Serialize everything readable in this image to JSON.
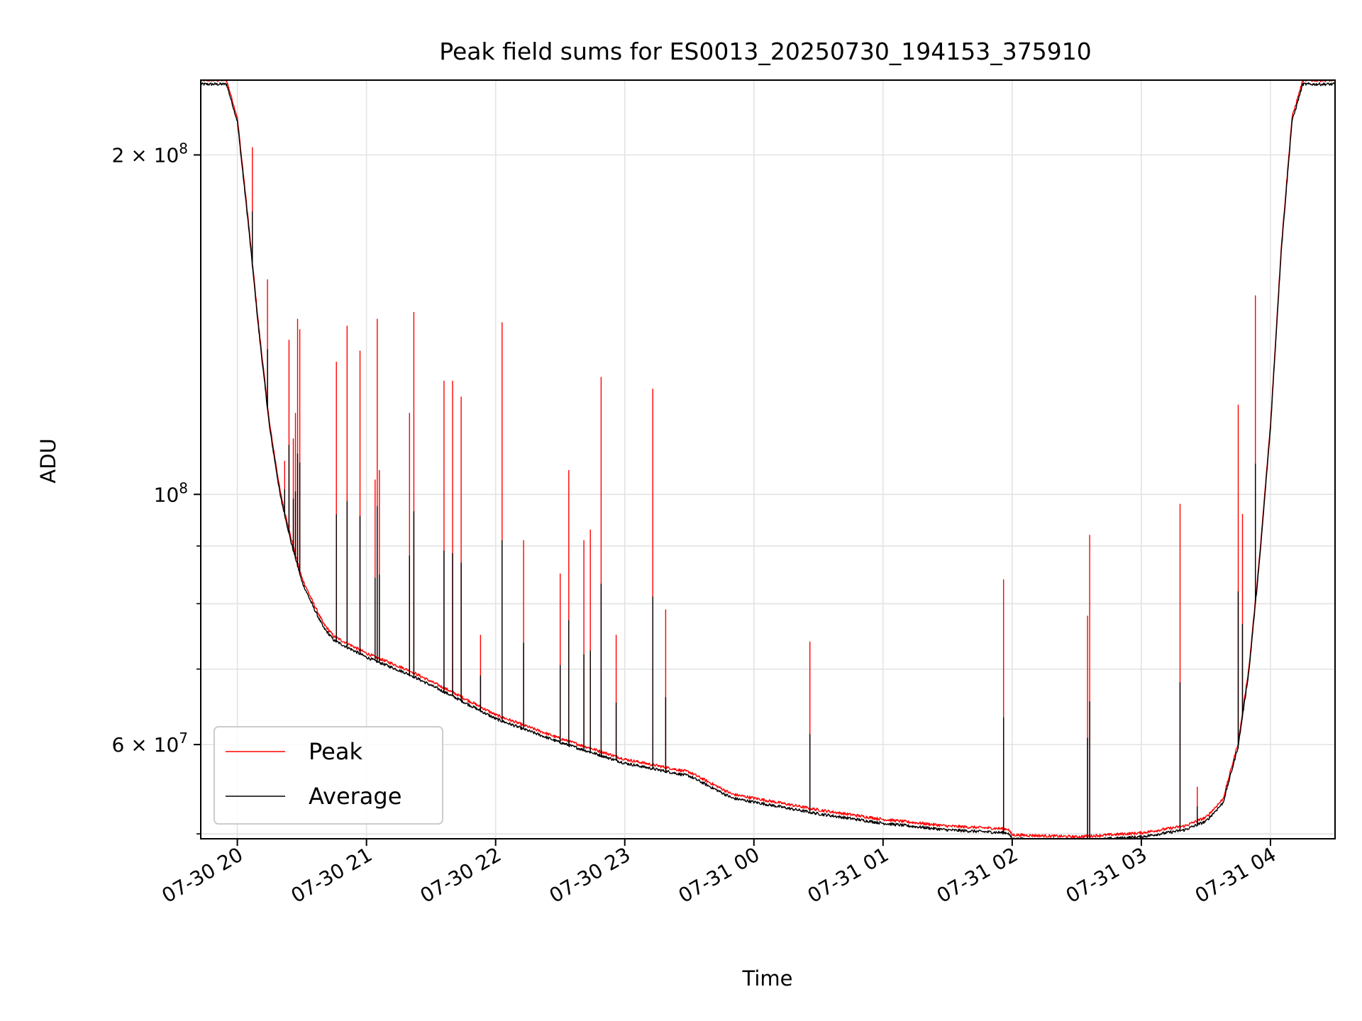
{
  "chart_data": {
    "type": "line",
    "title": "Peak field sums for ES0013_20250730_194153_375910",
    "xlabel": "Time",
    "ylabel": "ADU",
    "y_scale": "log",
    "x_range": [
      "2025-07-30 19:43",
      "2025-07-31 04:30"
    ],
    "ylim": [
      49500000,
      233000000
    ],
    "x_ticks": [
      {
        "t": "2025-07-30 20:00",
        "label": "07-30 20"
      },
      {
        "t": "2025-07-30 21:00",
        "label": "07-30 21"
      },
      {
        "t": "2025-07-30 22:00",
        "label": "07-30 22"
      },
      {
        "t": "2025-07-30 23:00",
        "label": "07-30 23"
      },
      {
        "t": "2025-07-31 00:00",
        "label": "07-31 00"
      },
      {
        "t": "2025-07-31 01:00",
        "label": "07-31 01"
      },
      {
        "t": "2025-07-31 02:00",
        "label": "07-31 02"
      },
      {
        "t": "2025-07-31 03:00",
        "label": "07-31 03"
      },
      {
        "t": "2025-07-31 04:00",
        "label": "07-31 04"
      }
    ],
    "y_major_ticks": [
      {
        "value": 200000000,
        "mant": "2 × 10",
        "exp": "8"
      },
      {
        "value": 100000000,
        "mant": "10",
        "exp": "8"
      },
      {
        "value": 60000000,
        "mant": "6 × 10",
        "exp": "7"
      }
    ],
    "y_minor_ticks": [
      50000000,
      70000000,
      80000000,
      90000000
    ],
    "grid": true,
    "legend_position": "lower-left",
    "series": [
      {
        "name": "Peak",
        "color": "#ff0000"
      },
      {
        "name": "Average",
        "color": "#000000"
      }
    ],
    "baseline": [
      {
        "t": "2025-07-30 19:43",
        "v": 232000000
      },
      {
        "t": "2025-07-30 19:55",
        "v": 232000000
      },
      {
        "t": "2025-07-30 20:00",
        "v": 215000000
      },
      {
        "t": "2025-07-30 20:05",
        "v": 175000000
      },
      {
        "t": "2025-07-30 20:10",
        "v": 140000000
      },
      {
        "t": "2025-07-30 20:15",
        "v": 115000000
      },
      {
        "t": "2025-07-30 20:20",
        "v": 100000000
      },
      {
        "t": "2025-07-30 20:25",
        "v": 91000000
      },
      {
        "t": "2025-07-30 20:30",
        "v": 84000000
      },
      {
        "t": "2025-07-30 20:35",
        "v": 80000000
      },
      {
        "t": "2025-07-30 20:40",
        "v": 76500000
      },
      {
        "t": "2025-07-30 20:45",
        "v": 74500000
      },
      {
        "t": "2025-07-30 21:00",
        "v": 72000000
      },
      {
        "t": "2025-07-30 21:20",
        "v": 69500000
      },
      {
        "t": "2025-07-30 21:40",
        "v": 66500000
      },
      {
        "t": "2025-07-30 22:00",
        "v": 63500000
      },
      {
        "t": "2025-07-30 22:30",
        "v": 60500000
      },
      {
        "t": "2025-07-30 23:00",
        "v": 58000000
      },
      {
        "t": "2025-07-30 23:30",
        "v": 56500000
      },
      {
        "t": "2025-07-30 23:50",
        "v": 54000000
      },
      {
        "t": "2025-07-31 00:30",
        "v": 52300000
      },
      {
        "t": "2025-07-31 01:00",
        "v": 51300000
      },
      {
        "t": "2025-07-31 01:30",
        "v": 50600000
      },
      {
        "t": "2025-07-31 01:58",
        "v": 50300000
      },
      {
        "t": "2025-07-31 02:00",
        "v": 49700000
      },
      {
        "t": "2025-07-31 02:30",
        "v": 49500000
      },
      {
        "t": "2025-07-31 03:00",
        "v": 49900000
      },
      {
        "t": "2025-07-31 03:20",
        "v": 50600000
      },
      {
        "t": "2025-07-31 03:30",
        "v": 51500000
      },
      {
        "t": "2025-07-31 03:38",
        "v": 53500000
      },
      {
        "t": "2025-07-31 03:45",
        "v": 60000000
      },
      {
        "t": "2025-07-31 03:50",
        "v": 70000000
      },
      {
        "t": "2025-07-31 03:55",
        "v": 88000000
      },
      {
        "t": "2025-07-31 04:00",
        "v": 115000000
      },
      {
        "t": "2025-07-31 04:05",
        "v": 165000000
      },
      {
        "t": "2025-07-31 04:10",
        "v": 215000000
      },
      {
        "t": "2025-07-31 04:15",
        "v": 232000000
      },
      {
        "t": "2025-07-31 04:30",
        "v": 232000000
      }
    ],
    "peak_spikes": [
      {
        "t": "2025-07-30 20:07",
        "v": 203000000
      },
      {
        "t": "2025-07-30 20:14",
        "v": 155000000
      },
      {
        "t": "2025-07-30 20:22",
        "v": 107000000
      },
      {
        "t": "2025-07-30 20:24",
        "v": 137000000
      },
      {
        "t": "2025-07-30 20:26",
        "v": 112000000
      },
      {
        "t": "2025-07-30 20:27",
        "v": 118000000
      },
      {
        "t": "2025-07-30 20:28",
        "v": 143000000
      },
      {
        "t": "2025-07-30 20:29",
        "v": 140000000
      },
      {
        "t": "2025-07-30 20:46",
        "v": 131000000
      },
      {
        "t": "2025-07-30 20:51",
        "v": 141000000
      },
      {
        "t": "2025-07-30 20:57",
        "v": 134000000
      },
      {
        "t": "2025-07-30 21:04",
        "v": 103000000
      },
      {
        "t": "2025-07-30 21:05",
        "v": 143000000
      },
      {
        "t": "2025-07-30 21:06",
        "v": 105000000
      },
      {
        "t": "2025-07-30 21:20",
        "v": 118000000
      },
      {
        "t": "2025-07-30 21:22",
        "v": 145000000
      },
      {
        "t": "2025-07-30 21:36",
        "v": 126000000
      },
      {
        "t": "2025-07-30 21:40",
        "v": 126000000
      },
      {
        "t": "2025-07-30 21:44",
        "v": 122000000
      },
      {
        "t": "2025-07-30 21:53",
        "v": 75000000
      },
      {
        "t": "2025-07-30 22:03",
        "v": 142000000
      },
      {
        "t": "2025-07-30 22:13",
        "v": 91000000
      },
      {
        "t": "2025-07-30 22:30",
        "v": 85000000
      },
      {
        "t": "2025-07-30 22:34",
        "v": 105000000
      },
      {
        "t": "2025-07-30 22:41",
        "v": 91000000
      },
      {
        "t": "2025-07-30 22:44",
        "v": 93000000
      },
      {
        "t": "2025-07-30 22:49",
        "v": 127000000
      },
      {
        "t": "2025-07-30 22:56",
        "v": 75000000
      },
      {
        "t": "2025-07-30 23:13",
        "v": 124000000
      },
      {
        "t": "2025-07-30 23:19",
        "v": 79000000
      },
      {
        "t": "2025-07-31 00:26",
        "v": 74000000
      },
      {
        "t": "2025-07-31 01:56",
        "v": 84000000
      },
      {
        "t": "2025-07-31 02:35",
        "v": 78000000
      },
      {
        "t": "2025-07-31 02:36",
        "v": 92000000
      },
      {
        "t": "2025-07-31 03:18",
        "v": 98000000
      },
      {
        "t": "2025-07-31 03:26",
        "v": 55000000
      },
      {
        "t": "2025-07-31 03:45",
        "v": 120000000
      },
      {
        "t": "2025-07-31 03:47",
        "v": 96000000
      },
      {
        "t": "2025-07-31 03:53",
        "v": 150000000
      }
    ]
  }
}
